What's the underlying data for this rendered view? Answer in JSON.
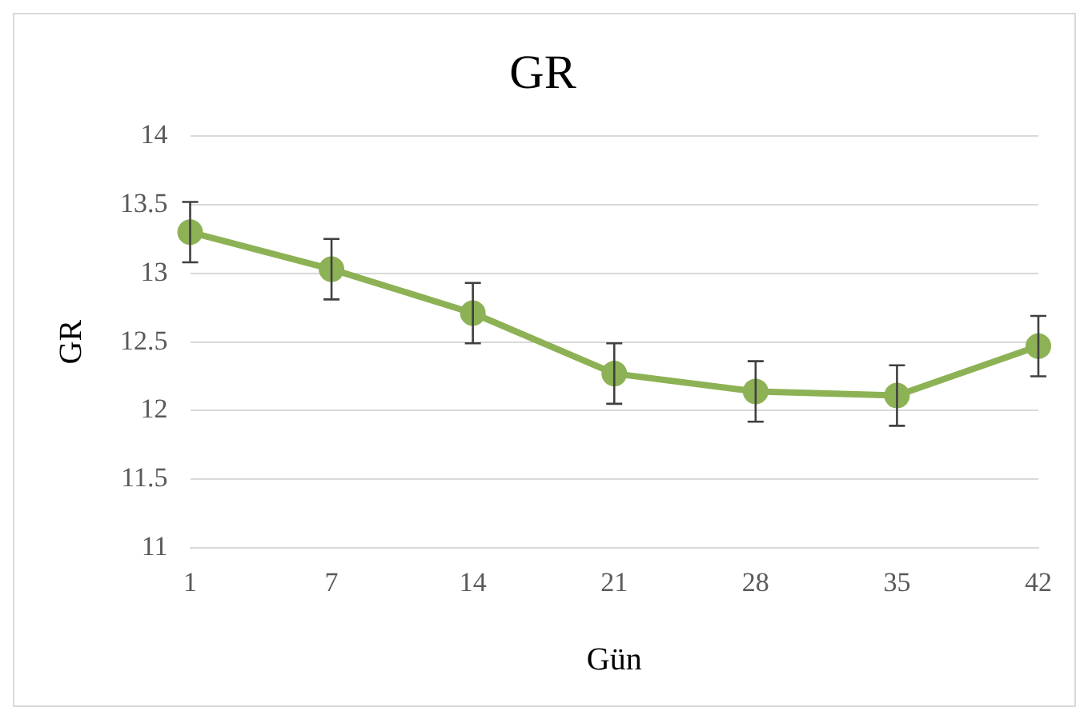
{
  "chart_data": {
    "type": "line",
    "title": "GR",
    "xlabel": "Gün",
    "ylabel": "GR",
    "categories": [
      "1",
      "7",
      "14",
      "21",
      "28",
      "35",
      "42"
    ],
    "series": [
      {
        "color": "#8db255",
        "values": [
          13.3,
          13.03,
          12.71,
          12.27,
          12.14,
          12.11,
          12.47
        ],
        "errors": [
          0.22,
          0.22,
          0.22,
          0.22,
          0.22,
          0.22,
          0.22
        ]
      }
    ],
    "ylim": [
      11,
      14
    ],
    "yticks": [
      11,
      11.5,
      12,
      12.5,
      13,
      13.5,
      14
    ],
    "grid": "y",
    "legend": false,
    "marker": "circle",
    "line_style": "solid"
  }
}
